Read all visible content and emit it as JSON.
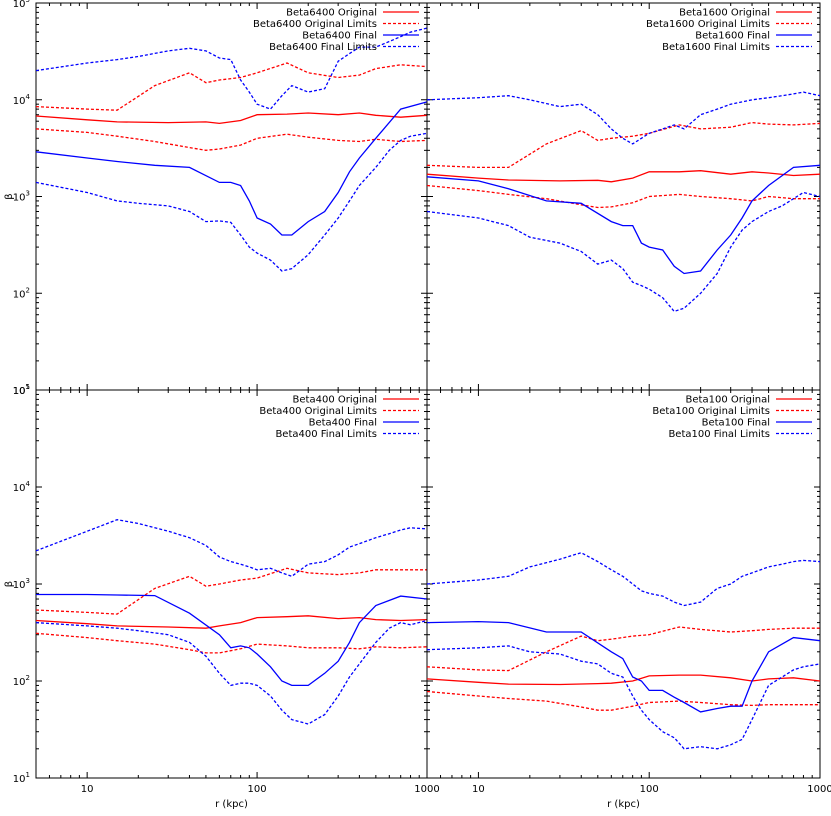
{
  "chart_data": [
    {
      "type": "line",
      "yscale": "log",
      "xscale": "log",
      "xlim": [
        5,
        1000
      ],
      "ylim": [
        10,
        100000
      ],
      "ylabel": "β",
      "xlabel": "",
      "x_ticks": [],
      "y_ticks": [
        "10^1",
        "10^2",
        "10^3",
        "10^4",
        "10^5"
      ],
      "legend_position": "top-right",
      "series": [
        {
          "name": "Beta6400 Original",
          "color": "#ff0000",
          "dash": "solid",
          "x": [
            5,
            10,
            15,
            30,
            50,
            60,
            80,
            100,
            150,
            200,
            300,
            400,
            500,
            700,
            1000
          ],
          "y": [
            6800,
            6200,
            5900,
            5800,
            5900,
            5700,
            6100,
            7000,
            7100,
            7300,
            7000,
            7300,
            6900,
            6600,
            6900
          ]
        },
        {
          "name": "Beta6400 Original Limits",
          "color": "#ff0000",
          "dash": "dashed",
          "x": [
            5,
            10,
            15,
            25,
            40,
            50,
            60,
            80,
            100,
            150,
            200,
            300,
            400,
            500,
            700,
            1000
          ],
          "y": [
            8500,
            8000,
            7800,
            14000,
            19000,
            15000,
            16000,
            17000,
            19000,
            24000,
            19000,
            17000,
            18000,
            21000,
            23000,
            22000
          ],
          "y_lower": [
            5000,
            4600,
            4200,
            3700,
            3200,
            3000,
            3100,
            3400,
            4000,
            4400,
            4100,
            3800,
            3700,
            3900,
            3700,
            3800
          ]
        },
        {
          "name": "Beta6400 Final",
          "color": "#0000ff",
          "dash": "solid",
          "x": [
            5,
            10,
            15,
            25,
            40,
            60,
            70,
            80,
            90,
            100,
            120,
            140,
            160,
            200,
            250,
            300,
            350,
            400,
            500,
            700,
            1000
          ],
          "y": [
            2900,
            2500,
            2300,
            2100,
            2000,
            1400,
            1400,
            1300,
            900,
            600,
            520,
            400,
            400,
            550,
            700,
            1100,
            1800,
            2500,
            4000,
            8000,
            9500
          ]
        },
        {
          "name": "Beta6400 Final Limits",
          "color": "#0000ff",
          "dash": "dashed",
          "x": [
            5,
            10,
            15,
            20,
            30,
            40,
            50,
            60,
            70,
            80,
            90,
            100,
            120,
            140,
            160,
            200,
            250,
            300,
            350,
            400,
            500,
            600,
            700,
            800,
            1000
          ],
          "y": [
            20000,
            24000,
            26000,
            28000,
            32000,
            34000,
            32000,
            27000,
            26000,
            16000,
            12000,
            9000,
            8000,
            11000,
            14000,
            12000,
            13000,
            25000,
            30000,
            35000,
            35000,
            40000,
            45000,
            50000,
            55000
          ],
          "y_lower": [
            1400,
            1100,
            900,
            850,
            800,
            700,
            550,
            560,
            540,
            400,
            300,
            260,
            220,
            170,
            180,
            250,
            400,
            600,
            900,
            1300,
            2000,
            3000,
            3800,
            4200,
            4500
          ]
        }
      ]
    },
    {
      "type": "line",
      "yscale": "log",
      "xscale": "log",
      "xlim": [
        5,
        1000
      ],
      "ylim": [
        10,
        100000
      ],
      "ylabel": "",
      "xlabel": "",
      "legend_position": "top-right",
      "series": [
        {
          "name": "Beta1600 Original",
          "color": "#ff0000",
          "dash": "solid",
          "x": [
            5,
            10,
            15,
            30,
            50,
            60,
            80,
            100,
            150,
            200,
            300,
            400,
            500,
            700,
            1000
          ],
          "y": [
            1700,
            1550,
            1480,
            1450,
            1470,
            1420,
            1550,
            1800,
            1800,
            1850,
            1700,
            1800,
            1750,
            1650,
            1700
          ]
        },
        {
          "name": "Beta1600 Original Limits",
          "color": "#ff0000",
          "dash": "dashed",
          "x": [
            5,
            10,
            15,
            25,
            40,
            50,
            60,
            80,
            100,
            150,
            200,
            300,
            400,
            500,
            700,
            1000
          ],
          "y": [
            2100,
            2000,
            2000,
            3500,
            4800,
            3800,
            4000,
            4200,
            4500,
            5500,
            5000,
            5200,
            5800,
            5600,
            5500,
            5700
          ],
          "y_lower": [
            1300,
            1150,
            1050,
            950,
            820,
            770,
            780,
            860,
            1000,
            1050,
            1000,
            950,
            900,
            1000,
            950,
            950
          ]
        },
        {
          "name": "Beta1600 Final",
          "color": "#0000ff",
          "dash": "solid",
          "x": [
            5,
            10,
            15,
            25,
            40,
            60,
            70,
            80,
            90,
            100,
            120,
            140,
            160,
            200,
            250,
            300,
            350,
            400,
            500,
            700,
            1000
          ],
          "y": [
            1600,
            1450,
            1200,
            900,
            850,
            550,
            500,
            500,
            330,
            300,
            280,
            190,
            160,
            170,
            280,
            400,
            600,
            900,
            1300,
            2000,
            2100
          ]
        },
        {
          "name": "Beta1600 Final Limits",
          "color": "#0000ff",
          "dash": "dashed",
          "x": [
            5,
            10,
            15,
            20,
            30,
            40,
            50,
            60,
            70,
            80,
            90,
            100,
            120,
            140,
            160,
            200,
            250,
            300,
            350,
            400,
            500,
            600,
            700,
            800,
            1000
          ],
          "y": [
            10000,
            10500,
            11000,
            10000,
            8500,
            9000,
            7000,
            5000,
            4000,
            3500,
            4000,
            4500,
            5000,
            5500,
            5000,
            7000,
            8000,
            9000,
            9500,
            10000,
            10500,
            11000,
            11500,
            12000,
            11000
          ],
          "y_lower": [
            700,
            600,
            500,
            380,
            330,
            270,
            200,
            220,
            180,
            130,
            120,
            110,
            90,
            65,
            70,
            100,
            160,
            300,
            450,
            550,
            700,
            800,
            950,
            1100,
            1000
          ]
        }
      ]
    },
    {
      "type": "line",
      "yscale": "log",
      "xscale": "log",
      "xlim": [
        5,
        1000
      ],
      "ylim": [
        10,
        100000
      ],
      "ylabel": "β",
      "xlabel": "r (kpc)",
      "x_ticks": [
        "10",
        "100",
        "1000"
      ],
      "y_ticks": [
        "10^1",
        "10^2",
        "10^3",
        "10^4",
        "10^5"
      ],
      "legend_position": "top-right",
      "series": [
        {
          "name": "Beta400 Original",
          "color": "#ff0000",
          "dash": "solid",
          "x": [
            5,
            10,
            15,
            30,
            50,
            60,
            80,
            100,
            150,
            200,
            300,
            400,
            500,
            700,
            1000
          ],
          "y": [
            420,
            390,
            370,
            360,
            350,
            370,
            400,
            450,
            460,
            470,
            440,
            450,
            430,
            420,
            430
          ]
        },
        {
          "name": "Beta400 Original Limits",
          "color": "#ff0000",
          "dash": "dashed",
          "x": [
            5,
            10,
            15,
            25,
            40,
            50,
            60,
            80,
            100,
            150,
            200,
            300,
            400,
            500,
            700,
            1000
          ],
          "y": [
            540,
            510,
            490,
            900,
            1200,
            950,
            1000,
            1100,
            1150,
            1450,
            1300,
            1250,
            1300,
            1400,
            1400,
            1400
          ],
          "y_lower": [
            310,
            280,
            260,
            240,
            210,
            195,
            195,
            215,
            240,
            230,
            220,
            220,
            215,
            225,
            220,
            225
          ]
        },
        {
          "name": "Beta400 Final",
          "color": "#0000ff",
          "dash": "solid",
          "x": [
            5,
            10,
            15,
            25,
            40,
            60,
            70,
            80,
            90,
            100,
            120,
            140,
            160,
            200,
            250,
            300,
            350,
            400,
            500,
            700,
            1000
          ],
          "y": [
            780,
            780,
            770,
            760,
            500,
            300,
            220,
            230,
            220,
            190,
            140,
            100,
            90,
            90,
            120,
            160,
            250,
            400,
            600,
            750,
            700
          ]
        },
        {
          "name": "Beta400 Final Limits",
          "color": "#0000ff",
          "dash": "dashed",
          "x": [
            5,
            10,
            15,
            20,
            30,
            40,
            50,
            60,
            70,
            80,
            90,
            100,
            120,
            140,
            160,
            200,
            250,
            300,
            350,
            400,
            500,
            600,
            700,
            800,
            1000
          ],
          "y": [
            2200,
            3500,
            4600,
            4200,
            3500,
            3000,
            2500,
            1900,
            1700,
            1600,
            1500,
            1400,
            1450,
            1300,
            1200,
            1600,
            1700,
            2000,
            2400,
            2600,
            3000,
            3300,
            3600,
            3800,
            3700
          ],
          "y_lower": [
            400,
            370,
            350,
            330,
            300,
            250,
            180,
            120,
            90,
            95,
            95,
            90,
            70,
            50,
            40,
            36,
            45,
            70,
            110,
            150,
            250,
            350,
            400,
            380,
            420
          ]
        }
      ]
    },
    {
      "type": "line",
      "yscale": "log",
      "xscale": "log",
      "xlim": [
        5,
        1000
      ],
      "ylim": [
        10,
        100000
      ],
      "ylabel": "",
      "xlabel": "r (kpc)",
      "x_ticks": [
        "10",
        "100",
        "1000"
      ],
      "legend_position": "top-right",
      "series": [
        {
          "name": "Beta100 Original",
          "color": "#ff0000",
          "dash": "solid",
          "x": [
            5,
            10,
            15,
            30,
            50,
            60,
            80,
            100,
            150,
            200,
            300,
            400,
            500,
            700,
            1000
          ],
          "y": [
            105,
            97,
            93,
            92,
            94,
            95,
            100,
            113,
            115,
            115,
            108,
            100,
            105,
            108,
            100
          ]
        },
        {
          "name": "Beta100 Original Limits",
          "color": "#ff0000",
          "dash": "dashed",
          "x": [
            5,
            10,
            15,
            25,
            40,
            50,
            60,
            80,
            100,
            150,
            200,
            300,
            400,
            500,
            700,
            1000
          ],
          "y": [
            140,
            130,
            128,
            200,
            290,
            260,
            270,
            290,
            300,
            360,
            340,
            320,
            330,
            340,
            350,
            350
          ],
          "y_lower": [
            78,
            70,
            66,
            62,
            54,
            50,
            50,
            55,
            60,
            62,
            60,
            57,
            56,
            57,
            57,
            57
          ]
        },
        {
          "name": "Beta100 Final",
          "color": "#0000ff",
          "dash": "solid",
          "x": [
            5,
            10,
            15,
            25,
            40,
            60,
            70,
            80,
            90,
            100,
            120,
            140,
            160,
            200,
            250,
            300,
            350,
            400,
            500,
            700,
            1000
          ],
          "y": [
            400,
            410,
            400,
            320,
            320,
            200,
            170,
            110,
            100,
            80,
            80,
            68,
            60,
            48,
            52,
            55,
            55,
            100,
            200,
            280,
            260
          ]
        },
        {
          "name": "Beta100 Final Limits",
          "color": "#0000ff",
          "dash": "dashed",
          "x": [
            5,
            10,
            15,
            20,
            30,
            40,
            50,
            60,
            70,
            80,
            90,
            100,
            120,
            140,
            160,
            200,
            250,
            300,
            350,
            400,
            500,
            600,
            700,
            800,
            1000
          ],
          "y": [
            1000,
            1100,
            1200,
            1500,
            1800,
            2100,
            1700,
            1400,
            1200,
            1000,
            850,
            800,
            750,
            650,
            600,
            650,
            900,
            1000,
            1200,
            1300,
            1500,
            1600,
            1700,
            1750,
            1700
          ],
          "y_lower": [
            210,
            220,
            230,
            200,
            190,
            160,
            150,
            120,
            110,
            70,
            50,
            40,
            30,
            26,
            20,
            21,
            20,
            22,
            25,
            40,
            90,
            110,
            130,
            140,
            150
          ]
        }
      ]
    }
  ]
}
